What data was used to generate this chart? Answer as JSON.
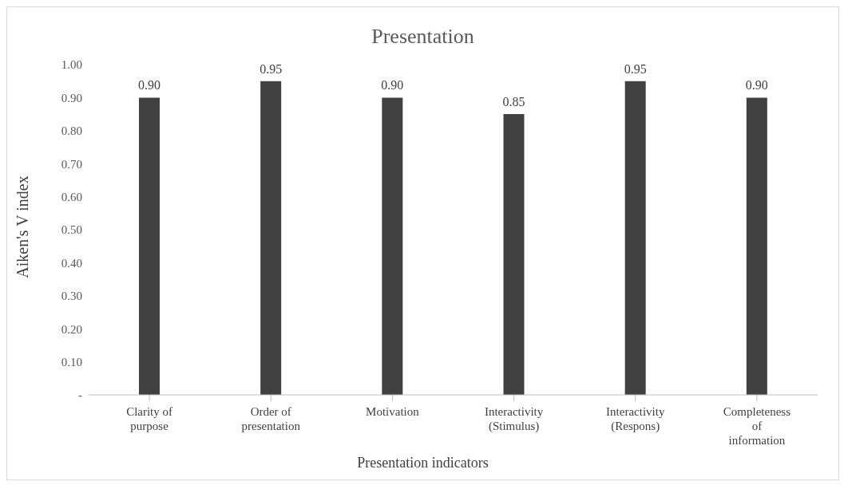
{
  "chart_data": {
    "type": "bar",
    "title": "Presentation",
    "xlabel": "Presentation indicators",
    "ylabel": "Aiken's V index",
    "categories": [
      "Clarity of purpose",
      "Order of presentation",
      "Motivation",
      "Interactivity (Stimulus)",
      "Interactivity (Respons)",
      "Completeness of information"
    ],
    "values": [
      0.9,
      0.95,
      0.9,
      0.85,
      0.95,
      0.9
    ],
    "value_labels": [
      "0.90",
      "0.95",
      "0.90",
      "0.85",
      "0.95",
      "0.90"
    ],
    "color": "#404040",
    "ylim": [
      0,
      1
    ],
    "yticks": [
      {
        "value": 0,
        "label": "-"
      },
      {
        "value": 0.1,
        "label": "0.10"
      },
      {
        "value": 0.2,
        "label": "0.20"
      },
      {
        "value": 0.3,
        "label": "0.30"
      },
      {
        "value": 0.4,
        "label": "0.40"
      },
      {
        "value": 0.5,
        "label": "0.50"
      },
      {
        "value": 0.6,
        "label": "0.60"
      },
      {
        "value": 0.7,
        "label": "0.70"
      },
      {
        "value": 0.8,
        "label": "0.80"
      },
      {
        "value": 0.9,
        "label": "0.90"
      },
      {
        "value": 1,
        "label": "1.00"
      }
    ],
    "grid": false,
    "legend": false
  }
}
